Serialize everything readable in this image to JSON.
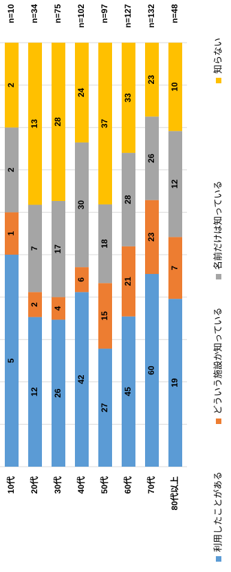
{
  "chart_data": {
    "type": "stacked_bar_100",
    "categories": [
      "10代",
      "20代",
      "30代",
      "40代",
      "50代",
      "60代",
      "70代",
      "80代以上"
    ],
    "n_labels": [
      "n=10",
      "n=34",
      "n=75",
      "n=102",
      "n=97",
      "n=127",
      "n=132",
      "n=48"
    ],
    "series": [
      {
        "name": "利用したことがある",
        "color": "#5b9bd5",
        "values": [
          5,
          12,
          26,
          42,
          27,
          45,
          60,
          19
        ]
      },
      {
        "name": "どういう施設か知っている",
        "color": "#ed7d31",
        "values": [
          1,
          2,
          4,
          6,
          15,
          21,
          23,
          7
        ]
      },
      {
        "name": "名前だけは知っている",
        "color": "#a5a5a5",
        "values": [
          2,
          7,
          17,
          30,
          18,
          28,
          26,
          12
        ]
      },
      {
        "name": "知らない",
        "color": "#ffc000",
        "values": [
          2,
          13,
          28,
          24,
          37,
          33,
          23,
          10
        ]
      }
    ],
    "ylim": [
      0,
      100
    ],
    "yticks": [
      0,
      10,
      20,
      30,
      40,
      50,
      60,
      70,
      80,
      90,
      100
    ],
    "grid": true
  }
}
